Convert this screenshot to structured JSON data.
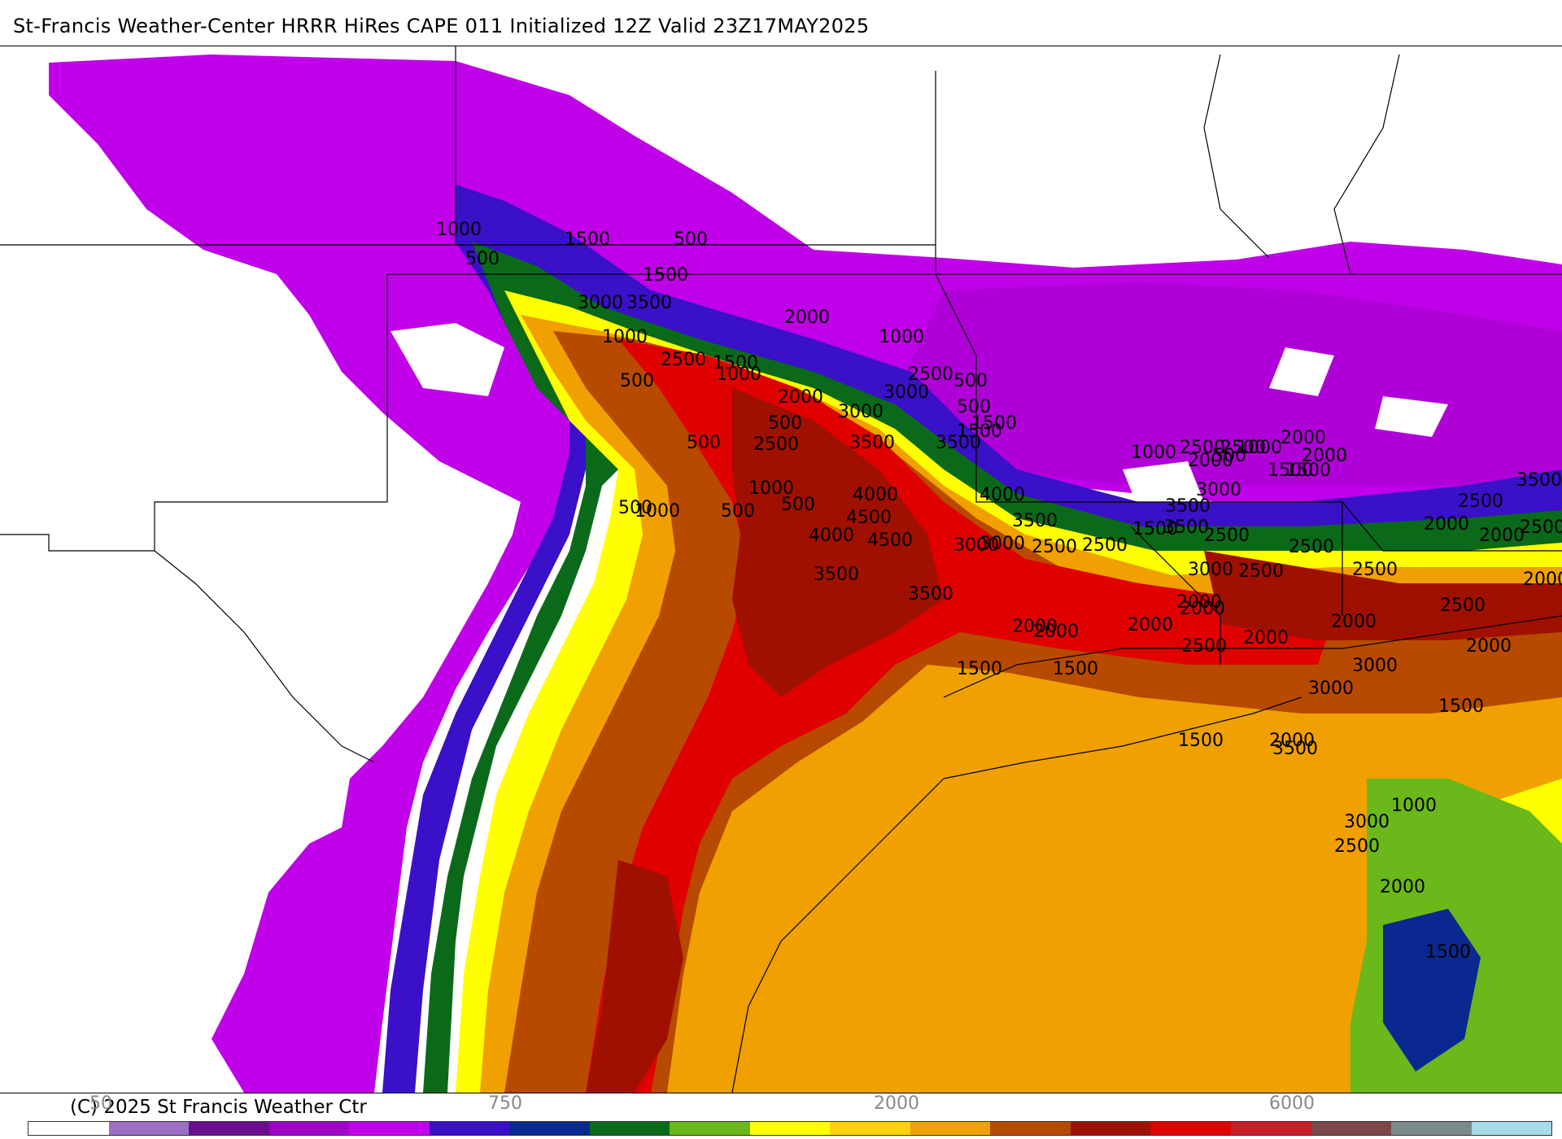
{
  "title": "St-Francis Weather-Center HRRR HiRes CAPE  011 Initialized  12Z Valid 23Z17MAY2025",
  "copyright": "(C) 2025 St Francis Weather Ctr",
  "colorbar": {
    "colors": [
      "#ffffff",
      "#9b6fc4",
      "#6a0d91",
      "#a000c8",
      "#c000e8",
      "#3a10c8",
      "#0a2890",
      "#0a6a1a",
      "#6ab81a",
      "#ffff00",
      "#ffd400",
      "#f0a000",
      "#b84a00",
      "#a01000",
      "#e00000",
      "#c81e28",
      "#7a4848",
      "#7a8a8a",
      "#a8dce8"
    ],
    "tick_labels": [
      "50",
      "750",
      "2000",
      "6000"
    ]
  },
  "legend_colors": {
    "cape_500": "#c000e8",
    "cape_1000": "#3a10c8",
    "cape_1500": "#0a6a1a",
    "cape_2000": "#f0a000",
    "cape_3000": "#b84a00",
    "cape_4000": "#e00000"
  },
  "contour_labels": [
    "1000",
    "500",
    "500",
    "1500",
    "1500",
    "3000",
    "3500",
    "2000",
    "1000",
    "1000",
    "2500",
    "1500",
    "500",
    "1000",
    "2500",
    "3000",
    "2000",
    "500",
    "500",
    "3000",
    "500",
    "1500",
    "500",
    "3500",
    "3500",
    "2500",
    "1000",
    "500",
    "4000",
    "1000",
    "500",
    "4500",
    "4000",
    "4500",
    "3500",
    "3500",
    "500",
    "1000",
    "1500",
    "2000",
    "2000",
    "2000",
    "4000",
    "3500",
    "3000",
    "2500",
    "2500",
    "1500",
    "3500",
    "3000",
    "3500",
    "2500",
    "3000",
    "2500",
    "2000",
    "1500",
    "500",
    "1000",
    "1500",
    "2000",
    "2500",
    "3000",
    "2500",
    "2000",
    "2000",
    "2000",
    "2000",
    "1500",
    "1500",
    "2000",
    "2500",
    "2000",
    "1500",
    "2000",
    "1500",
    "1000",
    "1500",
    "2000",
    "2500",
    "3000",
    "3500",
    "2500",
    "3000",
    "2500",
    "2500",
    "2000",
    "2500",
    "3000",
    "3500",
    "2500",
    "2000",
    "2000"
  ]
}
